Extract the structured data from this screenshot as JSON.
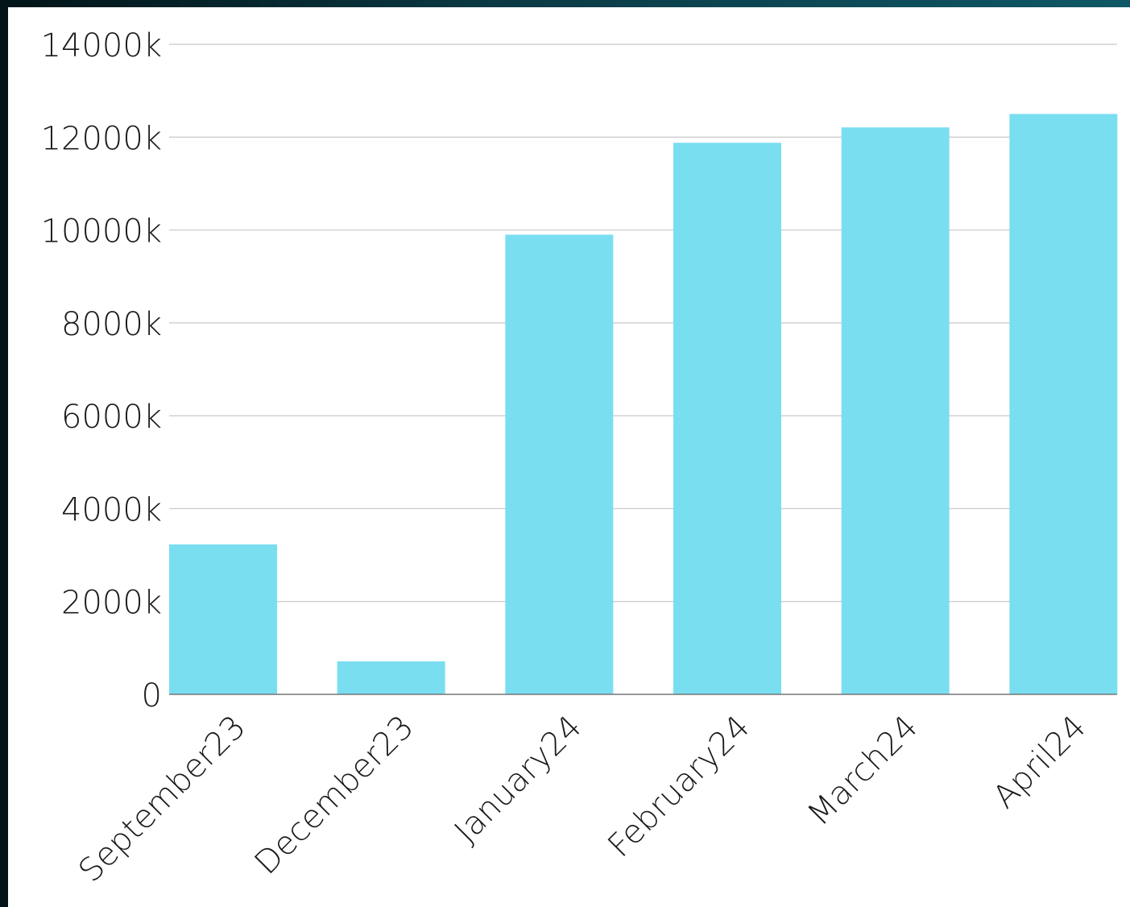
{
  "chart_data": {
    "type": "bar",
    "title": "",
    "xlabel": "",
    "ylabel": "",
    "categories": [
      "September23",
      "December23",
      "January24",
      "February24",
      "March24",
      "April24"
    ],
    "values": [
      3230,
      710,
      9900,
      11880,
      12210,
      12500
    ],
    "ylim": [
      0,
      14000
    ],
    "yticks": [
      0,
      2000,
      4000,
      6000,
      8000,
      10000,
      12000,
      14000
    ],
    "ytick_labels": [
      "0",
      "2000k",
      "4000k",
      "6000k",
      "8000k",
      "10000k",
      "12000k",
      "14000k"
    ],
    "grid": true,
    "legend": "none",
    "bar_color": "#7adef1"
  }
}
